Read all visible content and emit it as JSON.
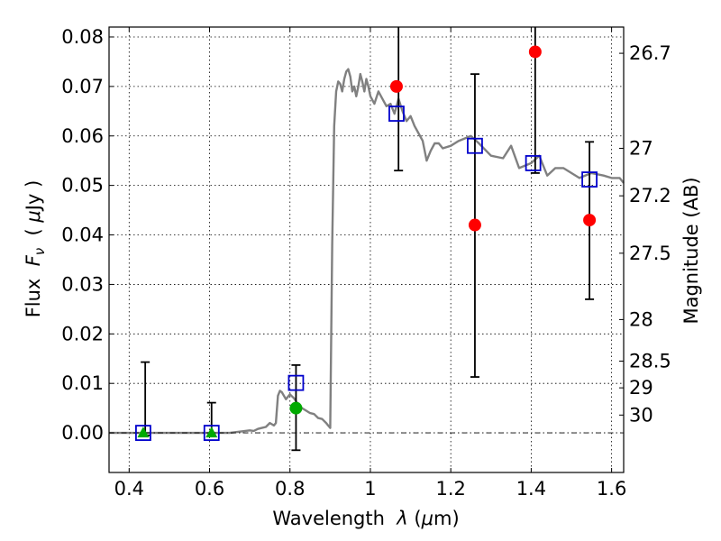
{
  "chart_data": {
    "type": "scatter",
    "xlabel_parts": [
      "Wavelength  ",
      "λ",
      " (",
      "μ",
      "m)"
    ],
    "ylabel_parts": [
      "Flux  ",
      "F",
      "ν",
      "  ( ",
      "μ",
      "Jy )"
    ],
    "y2label": "Magnitude (AB)",
    "xlim": [
      0.35,
      1.63
    ],
    "ylim": [
      -0.008,
      0.082
    ],
    "grid": true,
    "x_ticks": [
      0.4,
      0.6,
      0.8,
      1.0,
      1.2,
      1.4,
      1.6
    ],
    "x_tick_labels": [
      "0.4",
      "0.6",
      "0.8",
      "1",
      "1.2",
      "1.4",
      "1.6"
    ],
    "y_ticks": [
      0.0,
      0.01,
      0.02,
      0.03,
      0.04,
      0.05,
      0.06,
      0.07,
      0.08
    ],
    "y_tick_labels": [
      "0.00",
      "0.01",
      "0.02",
      "0.03",
      "0.04",
      "0.05",
      "0.06",
      "0.07",
      "0.08"
    ],
    "magnitude_ticks": [
      {
        "label": "26.7",
        "flux": 0.0767
      },
      {
        "label": "27",
        "flux": 0.0575
      },
      {
        "label": "27.2",
        "flux": 0.0479
      },
      {
        "label": "27.5",
        "flux": 0.0363
      },
      {
        "label": "28",
        "flux": 0.0229
      },
      {
        "label": "28.5",
        "flux": 0.0145
      },
      {
        "label": "29",
        "flux": 0.0091
      },
      {
        "label": "30",
        "flux": 0.0036
      }
    ],
    "series": [
      {
        "marker": "line",
        "color": "#808080",
        "x": [
          0.35,
          0.65,
          0.68,
          0.7,
          0.71,
          0.72,
          0.73,
          0.74,
          0.75,
          0.76,
          0.765,
          0.77,
          0.775,
          0.78,
          0.79,
          0.8,
          0.81,
          0.82,
          0.83,
          0.84,
          0.85,
          0.86,
          0.87,
          0.88,
          0.89,
          0.895,
          0.9,
          0.905,
          0.91,
          0.915,
          0.92,
          0.925,
          0.93,
          0.935,
          0.94,
          0.945,
          0.95,
          0.955,
          0.96,
          0.965,
          0.97,
          0.975,
          0.98,
          0.985,
          0.99,
          0.995,
          1.0,
          1.01,
          1.02,
          1.03,
          1.04,
          1.05,
          1.06,
          1.07,
          1.08,
          1.09,
          1.1,
          1.11,
          1.12,
          1.13,
          1.14,
          1.15,
          1.16,
          1.17,
          1.18,
          1.2,
          1.22,
          1.25,
          1.27,
          1.3,
          1.33,
          1.35,
          1.37,
          1.4,
          1.42,
          1.44,
          1.46,
          1.48,
          1.5,
          1.52,
          1.55,
          1.58,
          1.6,
          1.62,
          1.63
        ],
        "y": [
          0.0,
          0.0,
          0.0003,
          0.0005,
          0.0004,
          0.0008,
          0.001,
          0.0012,
          0.002,
          0.0015,
          0.002,
          0.0075,
          0.0085,
          0.0082,
          0.0068,
          0.0078,
          0.007,
          0.0058,
          0.005,
          0.0045,
          0.004,
          0.0038,
          0.003,
          0.0028,
          0.002,
          0.0015,
          0.001,
          0.038,
          0.062,
          0.069,
          0.071,
          0.0705,
          0.069,
          0.0715,
          0.073,
          0.0735,
          0.072,
          0.069,
          0.07,
          0.068,
          0.07,
          0.0725,
          0.071,
          0.069,
          0.0715,
          0.07,
          0.068,
          0.0665,
          0.069,
          0.0675,
          0.066,
          0.0665,
          0.0645,
          0.0675,
          0.065,
          0.063,
          0.064,
          0.062,
          0.0605,
          0.059,
          0.055,
          0.057,
          0.0585,
          0.0585,
          0.0575,
          0.058,
          0.059,
          0.06,
          0.0585,
          0.056,
          0.0555,
          0.058,
          0.0535,
          0.0545,
          0.056,
          0.052,
          0.0535,
          0.0535,
          0.0525,
          0.0515,
          0.0525,
          0.052,
          0.0515,
          0.0515,
          0.0505
        ]
      },
      {
        "marker": "circle",
        "color": "#ff0000",
        "x": [
          1.065,
          1.26,
          1.41,
          1.545
        ],
        "y": [
          0.07,
          0.042,
          0.077,
          0.043
        ]
      },
      {
        "marker": "circle",
        "color": "#00aa00",
        "x": [
          0.815
        ],
        "y": [
          0.005
        ]
      },
      {
        "marker": "triangle",
        "color": "#00aa00",
        "x": [
          0.435,
          0.605
        ],
        "y": [
          0.0,
          0.0
        ]
      },
      {
        "marker": "open-square",
        "color": "#0000cc",
        "x": [
          0.435,
          0.605,
          0.815,
          1.065,
          1.26,
          1.405,
          1.545
        ],
        "y": [
          0.0,
          0.0,
          0.0101,
          0.0645,
          0.058,
          0.0545,
          0.0512
        ]
      }
    ],
    "error_bars": [
      {
        "x": 0.44,
        "low": -0.0005,
        "high": 0.0143
      },
      {
        "x": 0.605,
        "low": -0.0005,
        "high": 0.0061
      },
      {
        "x": 0.815,
        "low": -0.0035,
        "high": 0.0137
      },
      {
        "x": 1.07,
        "low": 0.053,
        "high": 0.0825
      },
      {
        "x": 1.26,
        "low": 0.0113,
        "high": 0.0725
      },
      {
        "x": 1.41,
        "low": 0.0525,
        "high": 0.0825
      },
      {
        "x": 1.545,
        "low": 0.027,
        "high": 0.0588
      }
    ],
    "reference_line": {
      "y": 0.0,
      "color": "#000000",
      "style": "dash-dot"
    }
  }
}
